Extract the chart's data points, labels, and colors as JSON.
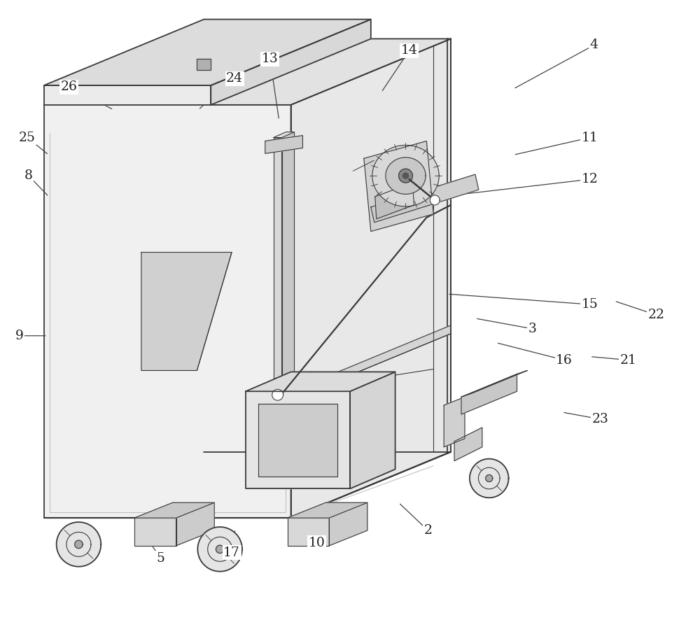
{
  "figure_width": 10.0,
  "figure_height": 8.86,
  "dpi": 100,
  "bg_color": "#ffffff",
  "lc": "#3a3a3a",
  "lw": 1.3,
  "tlw": 0.8,
  "label_fontsize": 13.5,
  "label_color": "#222222"
}
